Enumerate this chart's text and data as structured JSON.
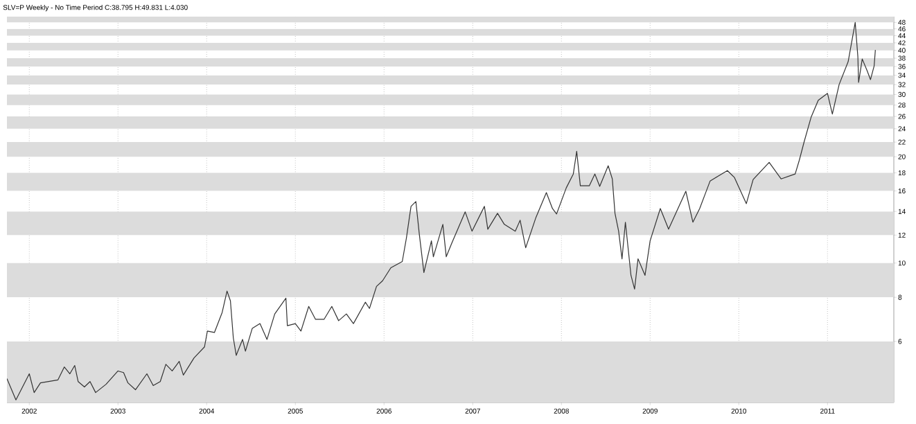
{
  "chart_data": {
    "type": "line",
    "title": "SLV=P Weekly -  No Time Period   C:38.795 H:49.831 L:4.030",
    "x": [
      "2001-10-01",
      "2001-11-07",
      "2002-01-01",
      "2002-01-21",
      "2002-02-16",
      "2002-04-29",
      "2002-05-25",
      "2002-06-17",
      "2002-07-07",
      "2002-07-21",
      "2002-08-16",
      "2002-09-08",
      "2002-10-01",
      "2002-11-13",
      "2003-01-01",
      "2003-01-24",
      "2003-02-11",
      "2003-03-14",
      "2003-04-30",
      "2003-05-26",
      "2003-06-24",
      "2003-07-17",
      "2003-08-12",
      "2003-09-10",
      "2003-09-27",
      "2003-11-10",
      "2003-12-23",
      "2004-01-04",
      "2004-02-02",
      "2004-03-05",
      "2004-03-25",
      "2004-04-08",
      "2004-04-20",
      "2004-05-02",
      "2004-05-28",
      "2004-06-09",
      "2004-07-07",
      "2004-08-08",
      "2004-09-06",
      "2004-10-08",
      "2004-11-23",
      "2004-11-29",
      "2005-01-01",
      "2005-01-24",
      "2005-02-25",
      "2005-03-25",
      "2005-04-29",
      "2005-05-31",
      "2005-06-28",
      "2005-07-30",
      "2005-08-28",
      "2005-10-16",
      "2005-11-02",
      "2005-12-01",
      "2005-12-26",
      "2006-01-29",
      "2006-03-17",
      "2006-04-03",
      "2006-04-22",
      "2006-05-12",
      "2006-05-26",
      "2006-06-14",
      "2006-07-15",
      "2006-07-23",
      "2006-08-31",
      "2006-09-14",
      "2006-10-07",
      "2006-12-01",
      "2006-12-29",
      "2007-02-18",
      "2007-03-04",
      "2007-04-13",
      "2007-05-11",
      "2007-06-25",
      "2007-07-15",
      "2007-08-07",
      "2007-09-18",
      "2007-10-31",
      "2007-11-25",
      "2007-12-12",
      "2008-01-21",
      "2008-02-19",
      "2008-03-04",
      "2008-03-19",
      "2008-04-25",
      "2008-05-18",
      "2008-06-07",
      "2008-07-12",
      "2008-07-29",
      "2008-08-09",
      "2008-08-24",
      "2008-09-07",
      "2008-09-21",
      "2008-10-14",
      "2008-10-29",
      "2008-11-12",
      "2008-12-11",
      "2009-01-01",
      "2009-02-12",
      "2009-03-18",
      "2009-05-28",
      "2009-06-26",
      "2009-07-24",
      "2009-09-05",
      "2009-11-15",
      "2009-12-14",
      "2010-02-01",
      "2010-03-01",
      "2010-05-06",
      "2010-06-24",
      "2010-08-21",
      "2010-09-07",
      "2010-09-27",
      "2010-10-26",
      "2010-11-24",
      "2011-01-01",
      "2011-01-21",
      "2011-02-18",
      "2011-03-27",
      "2011-04-25",
      "2011-05-06",
      "2011-05-09",
      "2011-05-24",
      "2011-06-13",
      "2011-06-27",
      "2011-07-12",
      "2011-07-17"
    ],
    "values": [
      4.71,
      4.1,
      4.86,
      4.3,
      4.58,
      4.67,
      5.08,
      4.86,
      5.13,
      4.62,
      4.46,
      4.62,
      4.3,
      4.54,
      4.95,
      4.9,
      4.58,
      4.38,
      4.86,
      4.5,
      4.62,
      5.17,
      4.95,
      5.27,
      4.82,
      5.39,
      5.79,
      6.42,
      6.36,
      7.25,
      8.33,
      7.82,
      6.14,
      5.48,
      6.08,
      5.63,
      6.53,
      6.74,
      6.08,
      7.18,
      7.96,
      6.65,
      6.74,
      6.42,
      7.54,
      6.93,
      6.93,
      7.54,
      6.87,
      7.18,
      6.74,
      7.75,
      7.44,
      8.59,
      8.91,
      9.7,
      10.1,
      11.77,
      14.47,
      14.93,
      12.09,
      9.4,
      11.56,
      10.42,
      12.87,
      10.42,
      11.4,
      13.96,
      12.31,
      14.47,
      12.47,
      13.83,
      12.87,
      12.31,
      13.22,
      11.05,
      13.46,
      15.83,
      14.27,
      13.77,
      16.33,
      17.87,
      20.72,
      16.55,
      16.55,
      17.87,
      16.48,
      18.86,
      17.31,
      13.83,
      12.31,
      10.28,
      13.05,
      9.23,
      8.44,
      10.28,
      9.23,
      11.56,
      14.27,
      12.47,
      15.97,
      13.05,
      14.27,
      17.08,
      18.27,
      17.47,
      14.73,
      17.24,
      19.28,
      17.31,
      17.87,
      19.55,
      22.06,
      25.93,
      28.89,
      30.21,
      26.4,
      32.03,
      37.15,
      48.0,
      38.33,
      32.46,
      37.82,
      35.03,
      33.05,
      36.16,
      40.09
    ],
    "color": "#333333",
    "xlim": [
      "2001-10-01",
      "2011-10-01"
    ],
    "xticks": [
      "2002",
      "2003",
      "2004",
      "2005",
      "2006",
      "2007",
      "2008",
      "2009",
      "2010",
      "2011"
    ],
    "ylim": [
      4.03,
      49.831
    ],
    "yticks": [
      6,
      8,
      10,
      12,
      14,
      16,
      18,
      20,
      22,
      24,
      26,
      28,
      30,
      32,
      34,
      36,
      38,
      40,
      42,
      44,
      46,
      48
    ],
    "log": "y",
    "grid": "x",
    "bands": [
      {
        "axis": "y",
        "from": 4.03,
        "to": 6,
        "color": "#dcdcdc"
      },
      {
        "axis": "y",
        "from": 8,
        "to": 10,
        "color": "#dcdcdc"
      },
      {
        "axis": "y",
        "from": 12,
        "to": 14,
        "color": "#dcdcdc"
      },
      {
        "axis": "y",
        "from": 16,
        "to": 18,
        "color": "#dcdcdc"
      },
      {
        "axis": "y",
        "from": 20,
        "to": 22,
        "color": "#dcdcdc"
      },
      {
        "axis": "y",
        "from": 24,
        "to": 26,
        "color": "#dcdcdc"
      },
      {
        "axis": "y",
        "from": 28,
        "to": 30,
        "color": "#dcdcdc"
      },
      {
        "axis": "y",
        "from": 32,
        "to": 34,
        "color": "#dcdcdc"
      },
      {
        "axis": "y",
        "from": 36,
        "to": 38,
        "color": "#dcdcdc"
      },
      {
        "axis": "y",
        "from": 40,
        "to": 42,
        "color": "#dcdcdc"
      },
      {
        "axis": "y",
        "from": 44,
        "to": 46,
        "color": "#dcdcdc"
      },
      {
        "axis": "y",
        "from": 48,
        "to": 49.831,
        "color": "#dcdcdc"
      }
    ]
  }
}
